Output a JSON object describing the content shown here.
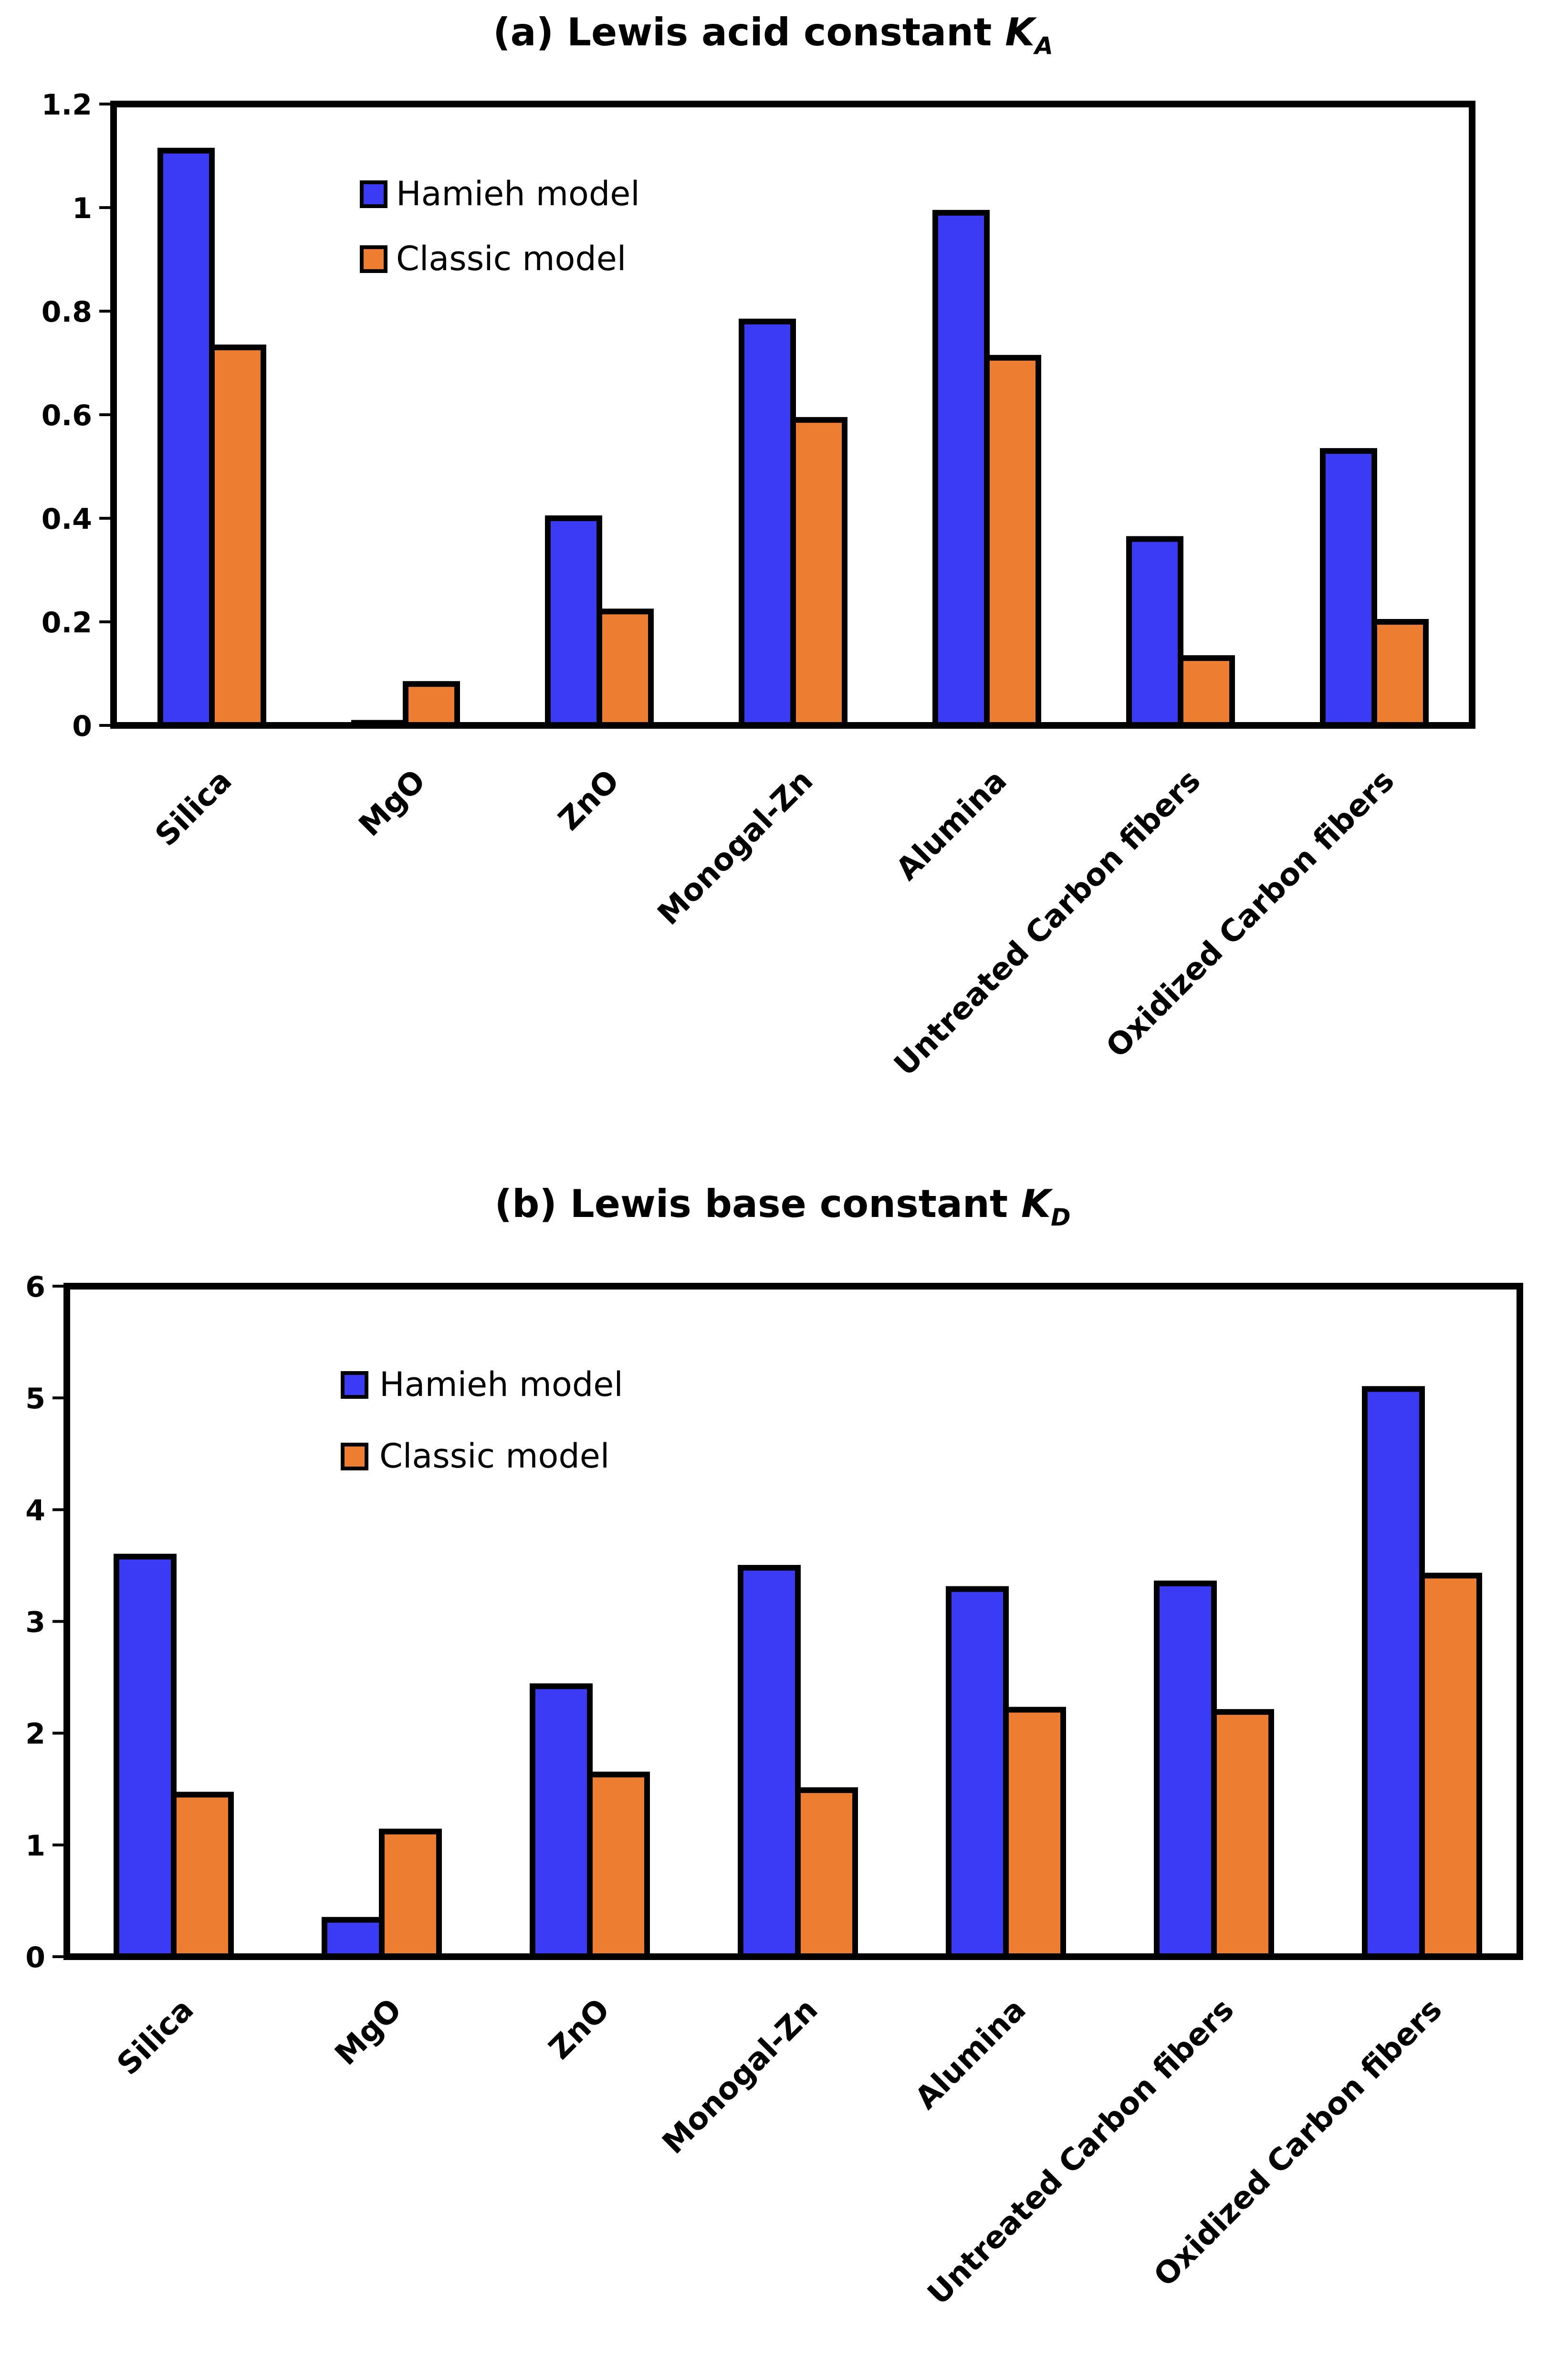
{
  "chart_data": [
    {
      "type": "bar",
      "title": "(a) Lewis acid constant",
      "title_symbol": "K",
      "title_subscript": "A",
      "categories": [
        "Silica",
        "MgO",
        "ZnO",
        "Monogal-Zn",
        "Alumina",
        "Untreated Carbon fibers",
        "Oxidized Carbon fibers"
      ],
      "series": [
        {
          "name": "Hamieh model",
          "color": "#3b3bf5",
          "values": [
            1.11,
            0.005,
            0.4,
            0.78,
            0.99,
            0.36,
            0.53
          ]
        },
        {
          "name": "Classic model",
          "color": "#ed7d31",
          "values": [
            0.73,
            0.08,
            0.22,
            0.59,
            0.71,
            0.13,
            0.2
          ]
        }
      ],
      "ylim": [
        0,
        1.2
      ],
      "yticks": [
        "0",
        "0.2",
        "0.4",
        "0.6",
        "0.8",
        "1",
        "1.2"
      ],
      "grid": false,
      "legend": "top-left"
    },
    {
      "type": "bar",
      "title": "(b) Lewis base constant",
      "title_symbol": "K",
      "title_subscript": "D",
      "categories": [
        "Silica",
        "MgO",
        "ZnO",
        "Monogal-Zn",
        "Alumina",
        "Untreated Carbon fibers",
        "Oxidized Carbon fibers"
      ],
      "series": [
        {
          "name": "Hamieh model",
          "color": "#3b3bf5",
          "values": [
            3.58,
            0.33,
            2.42,
            3.48,
            3.29,
            3.34,
            5.08
          ]
        },
        {
          "name": "Classic model",
          "color": "#ed7d31",
          "values": [
            1.45,
            1.12,
            1.63,
            1.49,
            2.21,
            2.19,
            3.41
          ]
        }
      ],
      "ylim": [
        0,
        6
      ],
      "yticks": [
        "0",
        "1",
        "2",
        "3",
        "4",
        "5",
        "6"
      ],
      "grid": false,
      "legend": "top-left"
    }
  ]
}
